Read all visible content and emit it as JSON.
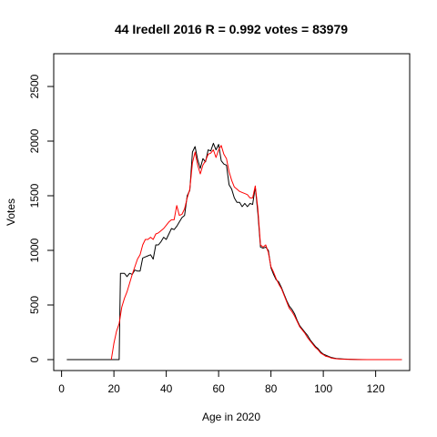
{
  "chart_data": {
    "type": "line",
    "title": "44 Iredell 2016 R = 0.992 votes = 83979",
    "xlabel": "Age in 2020",
    "ylabel": "Votes",
    "xlim": [
      -3,
      133
    ],
    "ylim": [
      -100,
      2800
    ],
    "x_ticks": [
      0,
      20,
      40,
      60,
      80,
      100,
      120
    ],
    "y_ticks": [
      0,
      500,
      1000,
      1500,
      2000,
      2500
    ],
    "grid": false,
    "legend": "none",
    "series": [
      {
        "color": "#000000",
        "points": [
          [
            2,
            0
          ],
          [
            22,
            0
          ],
          [
            22.5,
            790
          ],
          [
            24,
            790
          ],
          [
            25,
            760
          ],
          [
            26,
            790
          ],
          [
            27,
            780
          ],
          [
            28,
            820
          ],
          [
            29,
            810
          ],
          [
            30,
            810
          ],
          [
            31,
            930
          ],
          [
            32,
            940
          ],
          [
            33,
            950
          ],
          [
            34,
            960
          ],
          [
            35,
            920
          ],
          [
            36,
            1050
          ],
          [
            37,
            1050
          ],
          [
            38,
            1080
          ],
          [
            39,
            1120
          ],
          [
            40,
            1100
          ],
          [
            41,
            1150
          ],
          [
            42,
            1200
          ],
          [
            43,
            1190
          ],
          [
            44,
            1220
          ],
          [
            45,
            1260
          ],
          [
            46,
            1300
          ],
          [
            47,
            1320
          ],
          [
            48,
            1500
          ],
          [
            49,
            1550
          ],
          [
            50,
            1900
          ],
          [
            51,
            1950
          ],
          [
            52,
            1830
          ],
          [
            53,
            1750
          ],
          [
            54,
            1840
          ],
          [
            55,
            1810
          ],
          [
            56,
            1920
          ],
          [
            57,
            1910
          ],
          [
            58,
            1980
          ],
          [
            59,
            1920
          ],
          [
            60,
            1970
          ],
          [
            61,
            1820
          ],
          [
            62,
            1790
          ],
          [
            63,
            1780
          ],
          [
            64,
            1600
          ],
          [
            65,
            1560
          ],
          [
            66,
            1480
          ],
          [
            67,
            1440
          ],
          [
            68,
            1440
          ],
          [
            69,
            1400
          ],
          [
            70,
            1430
          ],
          [
            71,
            1400
          ],
          [
            72,
            1430
          ],
          [
            73,
            1420
          ],
          [
            74,
            1580
          ],
          [
            75,
            1340
          ],
          [
            76,
            1030
          ],
          [
            77,
            1020
          ],
          [
            78,
            1030
          ],
          [
            79,
            1000
          ],
          [
            80,
            840
          ],
          [
            81,
            780
          ],
          [
            82,
            730
          ],
          [
            83,
            710
          ],
          [
            84,
            660
          ],
          [
            85,
            600
          ],
          [
            86,
            540
          ],
          [
            87,
            490
          ],
          [
            88,
            460
          ],
          [
            89,
            420
          ],
          [
            90,
            360
          ],
          [
            91,
            310
          ],
          [
            92,
            280
          ],
          [
            93,
            250
          ],
          [
            94,
            220
          ],
          [
            95,
            180
          ],
          [
            96,
            150
          ],
          [
            97,
            120
          ],
          [
            98,
            100
          ],
          [
            99,
            70
          ],
          [
            100,
            50
          ],
          [
            101,
            40
          ],
          [
            102,
            30
          ],
          [
            103,
            20
          ],
          [
            104,
            15
          ],
          [
            105,
            10
          ],
          [
            106,
            8
          ],
          [
            108,
            5
          ],
          [
            110,
            3
          ],
          [
            113,
            1
          ],
          [
            117,
            0
          ],
          [
            130,
            0
          ]
        ]
      },
      {
        "color": "#ff0000",
        "points": [
          [
            19,
            0
          ],
          [
            20,
            150
          ],
          [
            21,
            260
          ],
          [
            22,
            330
          ],
          [
            23,
            480
          ],
          [
            24,
            560
          ],
          [
            25,
            620
          ],
          [
            26,
            700
          ],
          [
            27,
            780
          ],
          [
            28,
            850
          ],
          [
            29,
            920
          ],
          [
            30,
            960
          ],
          [
            31,
            1050
          ],
          [
            32,
            1100
          ],
          [
            33,
            1100
          ],
          [
            34,
            1120
          ],
          [
            35,
            1100
          ],
          [
            36,
            1150
          ],
          [
            37,
            1160
          ],
          [
            38,
            1180
          ],
          [
            39,
            1200
          ],
          [
            40,
            1230
          ],
          [
            41,
            1260
          ],
          [
            42,
            1280
          ],
          [
            43,
            1280
          ],
          [
            44,
            1410
          ],
          [
            45,
            1320
          ],
          [
            46,
            1330
          ],
          [
            47,
            1380
          ],
          [
            48,
            1480
          ],
          [
            49,
            1560
          ],
          [
            50,
            1800
          ],
          [
            51,
            1900
          ],
          [
            52,
            1780
          ],
          [
            53,
            1700
          ],
          [
            54,
            1780
          ],
          [
            55,
            1820
          ],
          [
            56,
            1880
          ],
          [
            57,
            1890
          ],
          [
            58,
            1920
          ],
          [
            59,
            1850
          ],
          [
            60,
            1920
          ],
          [
            61,
            1960
          ],
          [
            62,
            1880
          ],
          [
            63,
            1840
          ],
          [
            64,
            1720
          ],
          [
            65,
            1640
          ],
          [
            66,
            1580
          ],
          [
            67,
            1560
          ],
          [
            68,
            1540
          ],
          [
            69,
            1530
          ],
          [
            70,
            1520
          ],
          [
            71,
            1510
          ],
          [
            72,
            1480
          ],
          [
            73,
            1480
          ],
          [
            74,
            1590
          ],
          [
            75,
            1380
          ],
          [
            76,
            1050
          ],
          [
            77,
            1030
          ],
          [
            78,
            1050
          ],
          [
            79,
            980
          ],
          [
            80,
            850
          ],
          [
            81,
            800
          ],
          [
            82,
            740
          ],
          [
            83,
            690
          ],
          [
            84,
            650
          ],
          [
            85,
            590
          ],
          [
            86,
            530
          ],
          [
            87,
            470
          ],
          [
            88,
            440
          ],
          [
            89,
            400
          ],
          [
            90,
            350
          ],
          [
            91,
            300
          ],
          [
            92,
            270
          ],
          [
            93,
            240
          ],
          [
            94,
            200
          ],
          [
            95,
            170
          ],
          [
            96,
            140
          ],
          [
            97,
            110
          ],
          [
            98,
            90
          ],
          [
            99,
            60
          ],
          [
            100,
            45
          ],
          [
            101,
            30
          ],
          [
            102,
            25
          ],
          [
            103,
            15
          ],
          [
            104,
            10
          ],
          [
            106,
            5
          ],
          [
            110,
            2
          ],
          [
            115,
            0
          ],
          [
            130,
            0
          ]
        ]
      }
    ]
  }
}
